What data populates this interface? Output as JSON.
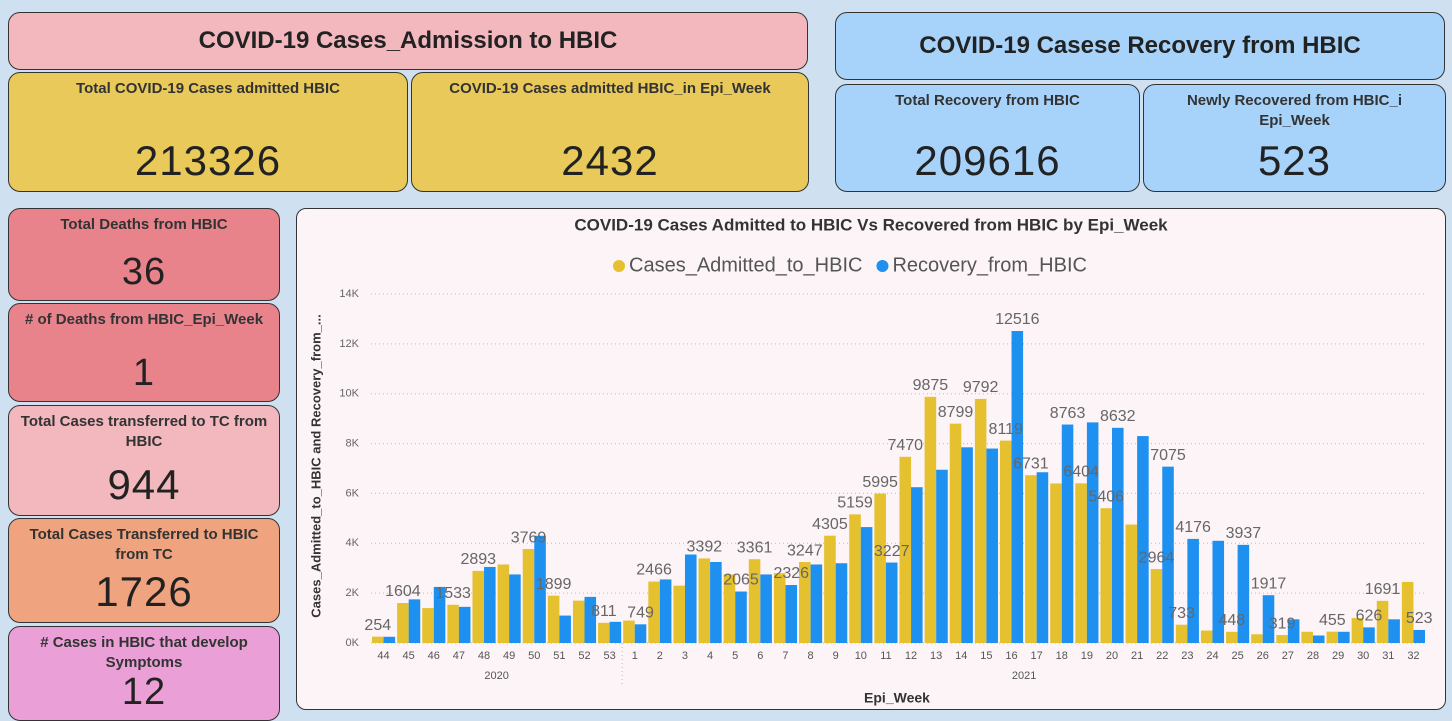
{
  "title_left": "COVID-19 Cases_Admission to HBIC",
  "title_right": "COVID-19 Casese Recovery from HBIC",
  "cards": [
    {
      "label": "Total COVID-19 Cases admitted HBIC",
      "value": 213326
    },
    {
      "label": "COVID-19 Cases admitted HBIC_in Epi_Week",
      "value": 2432
    },
    {
      "label": "Total Recovery from HBIC",
      "value": 209616
    },
    {
      "label": "Newly Recovered from HBIC_i Epi_Week",
      "value": 523
    },
    {
      "label": "Total Deaths from HBIC",
      "value": 36
    },
    {
      "label": "# of Deaths from HBIC_Epi_Week",
      "value": 1
    },
    {
      "label": "Total Cases transferred to TC from HBIC",
      "value": 944
    },
    {
      "label": "Total Cases Transferred to HBIC from TC",
      "value": 1726
    },
    {
      "label": "# Cases in HBIC that develop Symptoms",
      "value": 12
    }
  ],
  "chart_data": {
    "type": "bar",
    "title": "COVID-19 Cases Admitted to HBIC Vs Recovered from HBIC by Epi_Week",
    "x_label": "Epi_Week",
    "y_label": "Cases_Admitted_to_HBIC and Recovery_from_...",
    "categories": [
      "44",
      "45",
      "46",
      "47",
      "48",
      "49",
      "50",
      "51",
      "52",
      "53",
      "1",
      "2",
      "3",
      "4",
      "5",
      "6",
      "7",
      "8",
      "9",
      "10",
      "11",
      "12",
      "13",
      "14",
      "15",
      "16",
      "17",
      "18",
      "19",
      "20",
      "21",
      "22",
      "23",
      "24",
      "25",
      "26",
      "27",
      "28",
      "29",
      "30",
      "31",
      "32"
    ],
    "year_groups": [
      {
        "label": "2020",
        "count": 10
      },
      {
        "label": "2021",
        "count": 32
      }
    ],
    "series": [
      {
        "name": "Cases_Admitted_to_HBIC",
        "color": "#e5c02f",
        "values": [
          254,
          1604,
          1400,
          1533,
          2893,
          3150,
          3769,
          1899,
          1700,
          811,
          900,
          2466,
          2300,
          3392,
          2750,
          3361,
          2800,
          3247,
          4305,
          5159,
          5995,
          7470,
          9875,
          8799,
          9792,
          8119,
          6731,
          6400,
          6404,
          5406,
          4750,
          2964,
          733,
          500,
          448,
          350,
          319,
          450,
          455,
          1000,
          1691,
          2450
        ],
        "value_labels": [
          "254",
          "1604",
          null,
          "1533",
          "2893",
          null,
          "3769",
          "1899",
          null,
          "811",
          null,
          "2466",
          null,
          "3392",
          null,
          "3361",
          null,
          "3247",
          "4305",
          "5159",
          "5995",
          "7470",
          "9875",
          "8799",
          "9792",
          "8119",
          "6731",
          null,
          "6404",
          "5406",
          null,
          "2964",
          "733",
          null,
          "448",
          null,
          "319",
          null,
          "455",
          null,
          "1691",
          null
        ]
      },
      {
        "name": "Recovery_from_HBIC",
        "color": "#1e90f0",
        "values": [
          250,
          1750,
          2250,
          1450,
          3050,
          2750,
          4300,
          1100,
          1850,
          850,
          749,
          2550,
          3550,
          3250,
          2065,
          2750,
          2326,
          3150,
          3200,
          4650,
          3227,
          6250,
          6950,
          7850,
          7800,
          12516,
          6850,
          8763,
          8850,
          8632,
          8300,
          7075,
          4176,
          4100,
          3937,
          1917,
          950,
          300,
          450,
          626,
          950,
          523
        ],
        "value_labels": [
          null,
          null,
          null,
          null,
          null,
          null,
          null,
          null,
          null,
          null,
          "749",
          null,
          null,
          null,
          "2065",
          null,
          "2326",
          null,
          null,
          null,
          "3227",
          null,
          null,
          null,
          null,
          "12516",
          null,
          "8763",
          null,
          "8632",
          null,
          "7075",
          "4176",
          null,
          "3937",
          "1917",
          null,
          null,
          null,
          "626",
          null,
          "523"
        ]
      }
    ],
    "ylim": [
      0,
      14000
    ],
    "yticks": [
      {
        "value": 0,
        "label": "0K"
      },
      {
        "value": 2000,
        "label": "2K"
      },
      {
        "value": 4000,
        "label": "4K"
      },
      {
        "value": 6000,
        "label": "6K"
      },
      {
        "value": 8000,
        "label": "8K"
      },
      {
        "value": 10000,
        "label": "10K"
      },
      {
        "value": 12000,
        "label": "12K"
      },
      {
        "value": 14000,
        "label": "14K"
      }
    ],
    "grid": true,
    "legend": "top"
  }
}
